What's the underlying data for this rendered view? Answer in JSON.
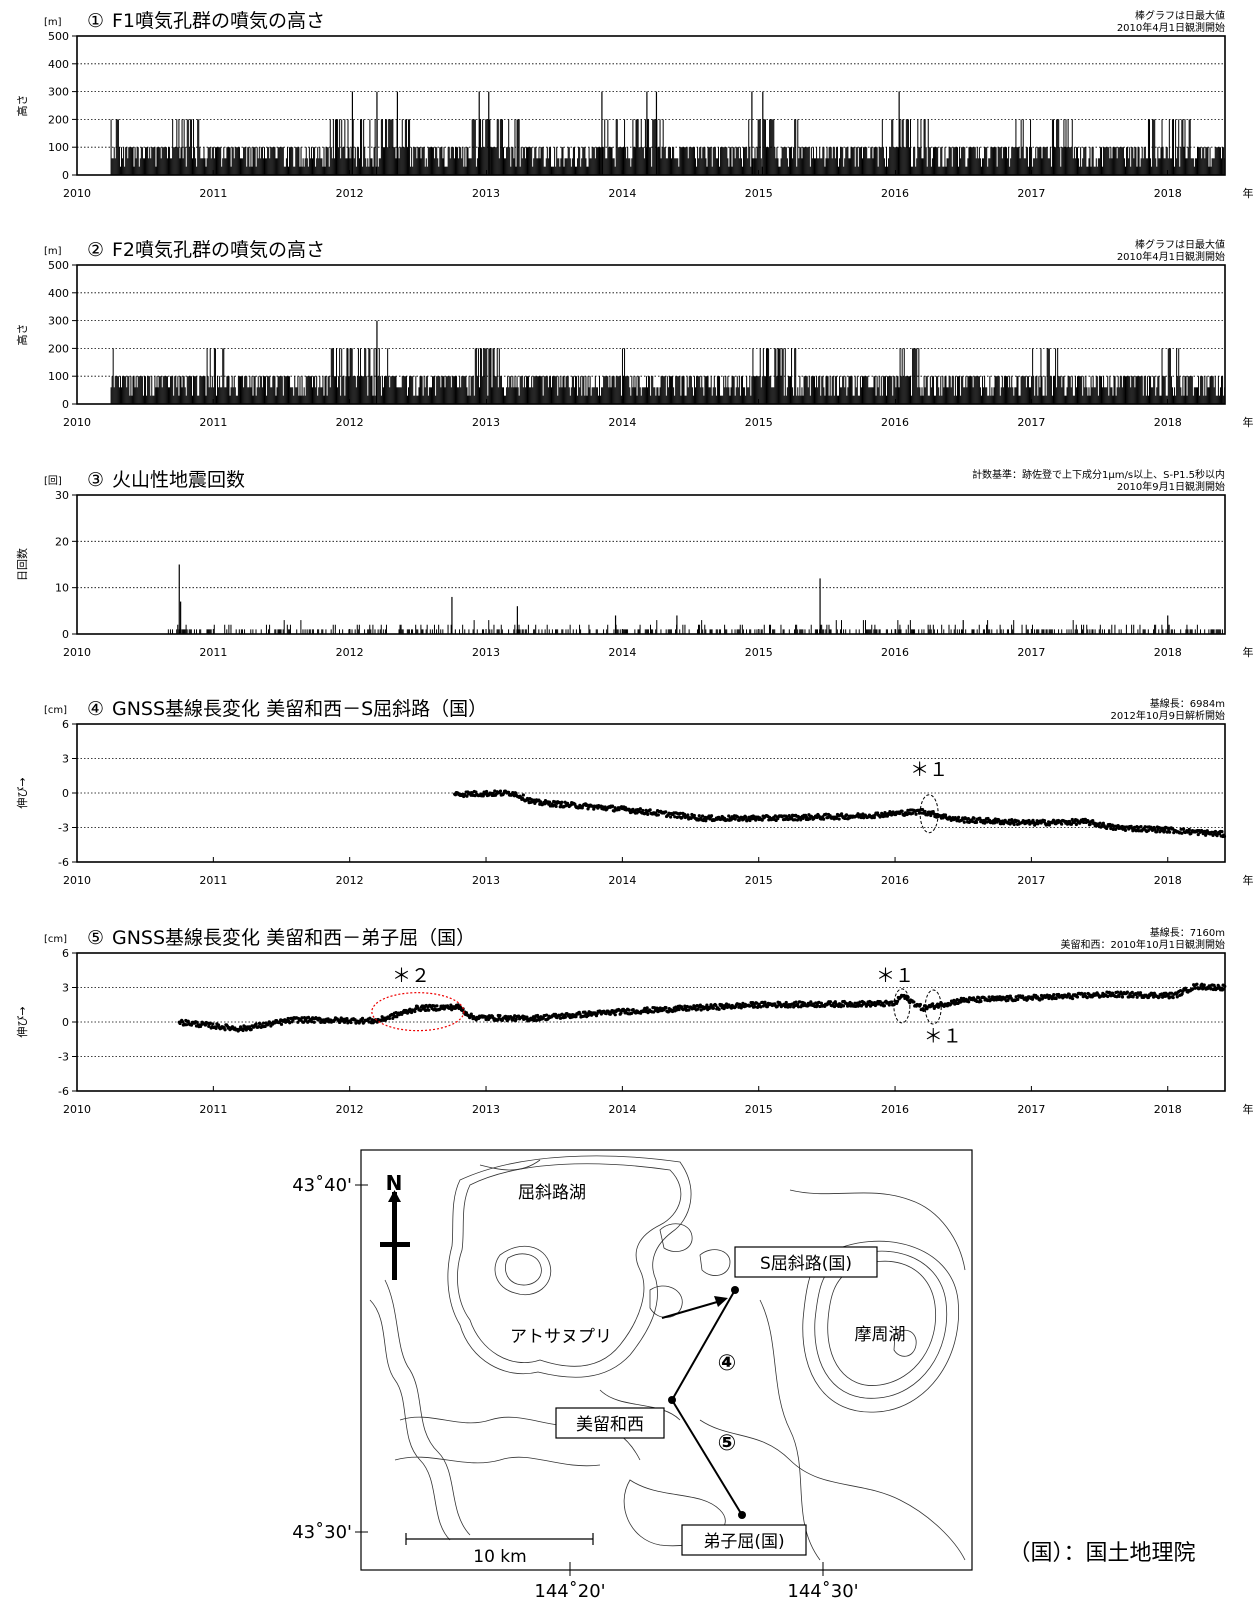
{
  "x_unit": "年",
  "chart_data": [
    {
      "type": "bar",
      "number": "①",
      "title": "F1噴気孔群の噴気の高さ",
      "unit": "[m]",
      "ylabel": "高さ",
      "note1": "棒グラフは日最大値",
      "note2": "2010年4月1日観測開始",
      "xlim": [
        2010.0,
        2018.42
      ],
      "x_ticks": [
        "2010",
        "2011",
        "2012",
        "2013",
        "2014",
        "2015",
        "2016",
        "2017",
        "2018"
      ],
      "ylim": [
        0,
        500
      ],
      "y_ticks": [
        "0",
        "100",
        "200",
        "300",
        "400",
        "500"
      ],
      "grid": true,
      "data_start": 2010.25,
      "typical_daily_max": 100,
      "peaks": [
        {
          "x": 2012.02,
          "y": 300
        },
        {
          "x": 2012.2,
          "y": 300
        },
        {
          "x": 2012.35,
          "y": 300
        },
        {
          "x": 2012.95,
          "y": 300
        },
        {
          "x": 2013.02,
          "y": 300
        },
        {
          "x": 2013.85,
          "y": 300
        },
        {
          "x": 2014.18,
          "y": 300
        },
        {
          "x": 2014.25,
          "y": 300
        },
        {
          "x": 2014.95,
          "y": 300
        },
        {
          "x": 2015.03,
          "y": 300
        },
        {
          "x": 2016.03,
          "y": 300
        }
      ],
      "bands_200": [
        [
          2010.25,
          2010.35
        ],
        [
          2010.7,
          2010.9
        ],
        [
          2011.85,
          2012.45
        ],
        [
          2012.85,
          2013.25
        ],
        [
          2013.85,
          2014.3
        ],
        [
          2014.9,
          2015.3
        ],
        [
          2015.9,
          2016.25
        ],
        [
          2016.85,
          2017.0
        ],
        [
          2017.15,
          2017.3
        ],
        [
          2017.85,
          2018.2
        ]
      ]
    },
    {
      "type": "bar",
      "number": "②",
      "title": "F2噴気孔群の噴気の高さ",
      "unit": "[m]",
      "ylabel": "高さ",
      "note1": "棒グラフは日最大値",
      "note2": "2010年4月1日観測開始",
      "xlim": [
        2010.0,
        2018.42
      ],
      "x_ticks": [
        "2010",
        "2011",
        "2012",
        "2013",
        "2014",
        "2015",
        "2016",
        "2017",
        "2018"
      ],
      "ylim": [
        0,
        500
      ],
      "y_ticks": [
        "0",
        "100",
        "200",
        "300",
        "400",
        "500"
      ],
      "grid": true,
      "data_start": 2010.25,
      "typical_daily_max": 100,
      "peaks": [
        {
          "x": 2012.2,
          "y": 300
        }
      ],
      "bands_200": [
        [
          2010.25,
          2010.3
        ],
        [
          2010.95,
          2011.1
        ],
        [
          2011.85,
          2012.3
        ],
        [
          2012.9,
          2013.1
        ],
        [
          2014.0,
          2014.05
        ],
        [
          2014.95,
          2015.3
        ],
        [
          2016.0,
          2016.2
        ],
        [
          2017.0,
          2017.2
        ],
        [
          2017.95,
          2018.1
        ]
      ]
    },
    {
      "type": "bar",
      "number": "③",
      "title": "火山性地震回数",
      "unit": "[回]",
      "ylabel": "日回数",
      "note1": "計数基準：跡佐登で上下成分1μm/s以上、S-P1.5秒以内",
      "note2": "2010年9月1日観測開始",
      "xlim": [
        2010.0,
        2018.42
      ],
      "x_ticks": [
        "2010",
        "2011",
        "2012",
        "2013",
        "2014",
        "2015",
        "2016",
        "2017",
        "2018"
      ],
      "ylim": [
        0,
        30
      ],
      "y_ticks": [
        "0",
        "10",
        "20",
        "30"
      ],
      "grid": true,
      "data_start": 2010.67,
      "peaks": [
        {
          "x": 2010.75,
          "y": 15
        },
        {
          "x": 2010.76,
          "y": 7
        },
        {
          "x": 2012.75,
          "y": 8
        },
        {
          "x": 2013.23,
          "y": 6
        },
        {
          "x": 2015.45,
          "y": 12
        },
        {
          "x": 2013.95,
          "y": 4
        },
        {
          "x": 2014.4,
          "y": 4
        },
        {
          "x": 2016.5,
          "y": 3
        },
        {
          "x": 2018.0,
          "y": 4
        }
      ]
    },
    {
      "type": "scatter",
      "number": "④",
      "title": "GNSS基線長変化 美留和西－S屈斜路（国）",
      "unit": "[cm]",
      "ylabel": "伸び→",
      "note1": "基線長：6984m",
      "note2": "2012年10月9日解析開始",
      "xlim": [
        2010.0,
        2018.42
      ],
      "x_ticks": [
        "2010",
        "2011",
        "2012",
        "2013",
        "2014",
        "2015",
        "2016",
        "2017",
        "2018"
      ],
      "ylim": [
        -6,
        6
      ],
      "y_ticks": [
        "-6",
        "-3",
        "0",
        "3",
        "6"
      ],
      "grid": true,
      "trend": [
        {
          "x": 2012.77,
          "y": -0.1
        },
        {
          "x": 2013.2,
          "y": 0.0
        },
        {
          "x": 2013.35,
          "y": -0.8
        },
        {
          "x": 2014.0,
          "y": -1.4
        },
        {
          "x": 2014.6,
          "y": -2.2
        },
        {
          "x": 2015.0,
          "y": -2.2
        },
        {
          "x": 2015.75,
          "y": -2.0
        },
        {
          "x": 2016.2,
          "y": -1.6
        },
        {
          "x": 2016.45,
          "y": -2.3
        },
        {
          "x": 2017.0,
          "y": -2.6
        },
        {
          "x": 2017.4,
          "y": -2.5
        },
        {
          "x": 2017.6,
          "y": -3.0
        },
        {
          "x": 2018.0,
          "y": -3.2
        },
        {
          "x": 2018.42,
          "y": -3.6
        }
      ],
      "annotations": [
        {
          "text": "＊１",
          "x": 2016.25,
          "y": 1.5
        }
      ]
    },
    {
      "type": "scatter",
      "number": "⑤",
      "title": "GNSS基線長変化 美留和西－弟子屈（国）",
      "unit": "[cm]",
      "ylabel": "伸び→",
      "note1": "基線長：7160m",
      "note2": "美留和西：2010年10月1日観測開始",
      "xlim": [
        2010.0,
        2018.42
      ],
      "x_ticks": [
        "2010",
        "2011",
        "2012",
        "2013",
        "2014",
        "2015",
        "2016",
        "2017",
        "2018"
      ],
      "ylim": [
        -6,
        6
      ],
      "y_ticks": [
        "-6",
        "-3",
        "0",
        "3",
        "6"
      ],
      "grid": true,
      "trend": [
        {
          "x": 2010.75,
          "y": 0.0
        },
        {
          "x": 2011.2,
          "y": -0.6
        },
        {
          "x": 2011.6,
          "y": 0.2
        },
        {
          "x": 2012.2,
          "y": 0.1
        },
        {
          "x": 2012.5,
          "y": 1.2
        },
        {
          "x": 2012.8,
          "y": 1.3
        },
        {
          "x": 2012.9,
          "y": 0.4
        },
        {
          "x": 2013.3,
          "y": 0.3
        },
        {
          "x": 2014.0,
          "y": 0.9
        },
        {
          "x": 2015.0,
          "y": 1.5
        },
        {
          "x": 2016.0,
          "y": 1.6
        },
        {
          "x": 2016.05,
          "y": 2.3
        },
        {
          "x": 2016.2,
          "y": 1.2
        },
        {
          "x": 2016.5,
          "y": 1.9
        },
        {
          "x": 2017.0,
          "y": 2.1
        },
        {
          "x": 2017.6,
          "y": 2.4
        },
        {
          "x": 2018.05,
          "y": 2.3
        },
        {
          "x": 2018.2,
          "y": 3.1
        },
        {
          "x": 2018.42,
          "y": 3.0
        }
      ],
      "annotations": [
        {
          "text": "＊２",
          "x": 2012.45,
          "y": 3.5
        },
        {
          "text": "＊１",
          "x": 2016.0,
          "y": 3.5
        },
        {
          "text": "＊１",
          "x": 2016.35,
          "y": -1.8
        }
      ]
    }
  ],
  "map": {
    "lat_top": "43˚40'",
    "lat_bottom": "43˚30'",
    "lon_left": "144˚20'",
    "lon_right": "144˚30'",
    "north": "N",
    "lake_west": "屈斜路湖",
    "lake_east": "摩周湖",
    "station_s": "S屈斜路(国)",
    "station_mid": "美留和西",
    "station_south": "弟子屈(国)",
    "peak": "アトサヌプリ",
    "baseline4": "④",
    "baseline5": "⑤",
    "scale": "10 km",
    "legend": "（国）：国土地理院"
  }
}
